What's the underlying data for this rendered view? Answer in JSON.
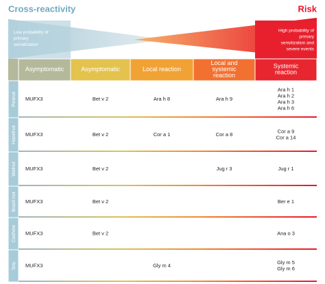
{
  "header": {
    "left_title": "Cross-reactivity",
    "right_title": "Risk",
    "left_note": "Low probability of primary sensitization",
    "right_note": "High probability of primary sensitization and severe events"
  },
  "columns": [
    "Asymptomatic",
    "Asymptomatic",
    "Local reaction",
    "Local and systemic reaction",
    "Systemic reaction"
  ],
  "rows": [
    {
      "name": "Peanut",
      "cells": [
        [
          "MUFX3"
        ],
        [
          "Bet v 2"
        ],
        [
          "Ara h 8"
        ],
        [
          "Ara h 9"
        ],
        [
          "Ara h 1",
          "Ara h 2",
          "Ara h 3",
          "Ara h 6"
        ]
      ]
    },
    {
      "name": "Hazelnut",
      "cells": [
        [
          "MUFX3"
        ],
        [
          "Bet v 2"
        ],
        [
          "Cor a 1"
        ],
        [
          "Cor a 8"
        ],
        [
          "Cor a 9",
          "Cor a 14"
        ]
      ]
    },
    {
      "name": "Walnut",
      "cells": [
        [
          "MUFX3"
        ],
        [
          "Bet v 2"
        ],
        [],
        [
          "Jug r 3"
        ],
        [
          "Jug r 1"
        ]
      ]
    },
    {
      "name": "Brazil nut",
      "cells": [
        [
          "MUFX3"
        ],
        [
          "Bet v 2"
        ],
        [],
        [],
        [
          "Ber e 1"
        ]
      ]
    },
    {
      "name": "Cashew",
      "cells": [
        [
          "MUFX3"
        ],
        [
          "Bet v 2"
        ],
        [],
        [],
        [
          "Ana o 3"
        ]
      ]
    },
    {
      "name": "Soy",
      "cells": [
        [
          "MUFX3"
        ],
        [],
        [
          "Gly m 4"
        ],
        [],
        [
          "Gly m 5",
          "Gly m 6"
        ]
      ]
    }
  ]
}
